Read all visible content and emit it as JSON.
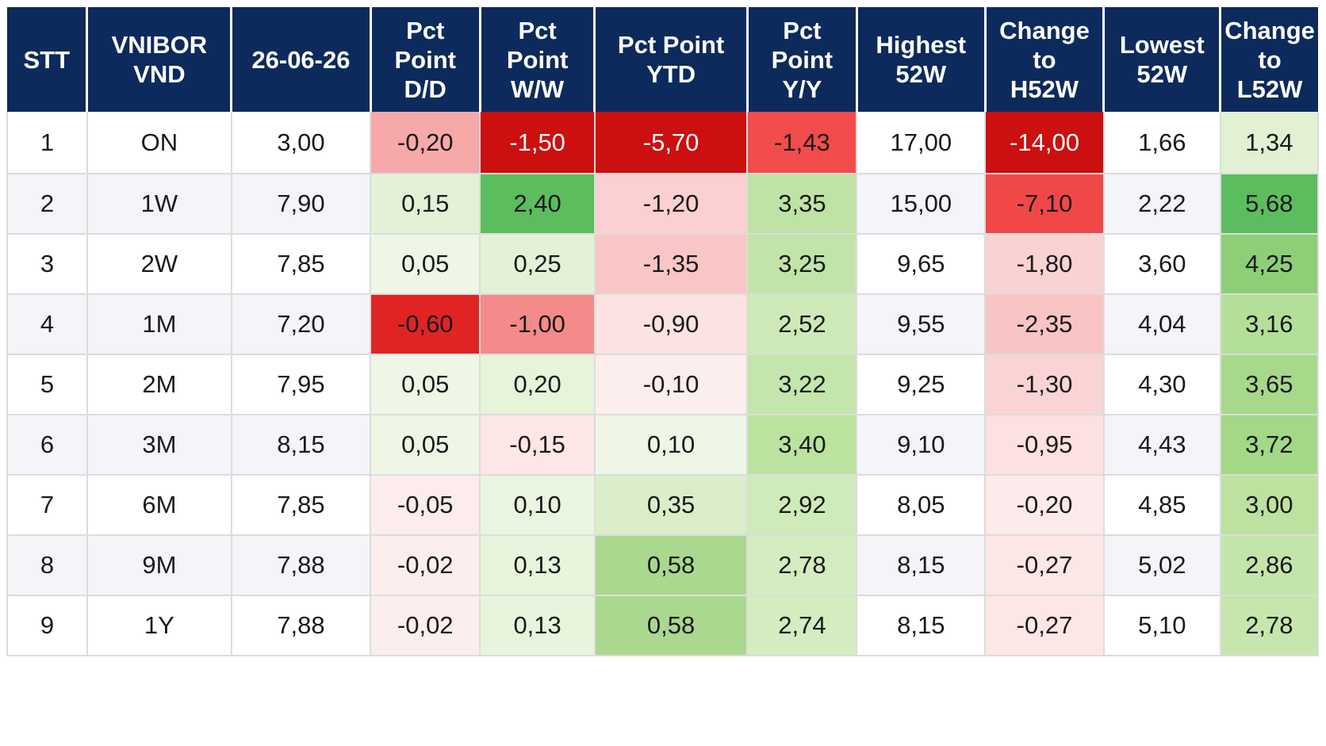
{
  "header": {
    "columns": [
      {
        "key": "stt",
        "lines": [
          "STT"
        ]
      },
      {
        "key": "vnibor",
        "lines": [
          "VNIBOR",
          "VND"
        ]
      },
      {
        "key": "rate",
        "lines": [
          "26-06-26"
        ]
      },
      {
        "key": "dd",
        "lines": [
          "Pct",
          "Point",
          "D/D"
        ]
      },
      {
        "key": "ww",
        "lines": [
          "Pct",
          "Point",
          "W/W"
        ]
      },
      {
        "key": "ytd",
        "lines": [
          "Pct Point",
          "YTD"
        ]
      },
      {
        "key": "yy",
        "lines": [
          "Pct",
          "Point",
          "Y/Y"
        ]
      },
      {
        "key": "h52",
        "lines": [
          "Highest",
          "52W"
        ]
      },
      {
        "key": "ch52",
        "lines": [
          "Change",
          "to",
          "H52W"
        ]
      },
      {
        "key": "l52",
        "lines": [
          "Lowest",
          "52W"
        ]
      },
      {
        "key": "cl52",
        "lines": [
          "Change",
          "to",
          "L52W"
        ]
      }
    ]
  },
  "rows": [
    {
      "stt": "1",
      "tenor": "ON",
      "rate": "3,00",
      "dd": "-0,20",
      "ww": "-1,50",
      "ytd": "-5,70",
      "yy": "-1,43",
      "h52": "17,00",
      "ch52": "-14,00",
      "l52": "1,66",
      "cl52": "1,34"
    },
    {
      "stt": "2",
      "tenor": "1W",
      "rate": "7,90",
      "dd": "0,15",
      "ww": "2,40",
      "ytd": "-1,20",
      "yy": "3,35",
      "h52": "15,00",
      "ch52": "-7,10",
      "l52": "2,22",
      "cl52": "5,68"
    },
    {
      "stt": "3",
      "tenor": "2W",
      "rate": "7,85",
      "dd": "0,05",
      "ww": "0,25",
      "ytd": "-1,35",
      "yy": "3,25",
      "h52": "9,65",
      "ch52": "-1,80",
      "l52": "3,60",
      "cl52": "4,25"
    },
    {
      "stt": "4",
      "tenor": "1M",
      "rate": "7,20",
      "dd": "-0,60",
      "ww": "-1,00",
      "ytd": "-0,90",
      "yy": "2,52",
      "h52": "9,55",
      "ch52": "-2,35",
      "l52": "4,04",
      "cl52": "3,16"
    },
    {
      "stt": "5",
      "tenor": "2M",
      "rate": "7,95",
      "dd": "0,05",
      "ww": "0,20",
      "ytd": "-0,10",
      "yy": "3,22",
      "h52": "9,25",
      "ch52": "-1,30",
      "l52": "4,30",
      "cl52": "3,65"
    },
    {
      "stt": "6",
      "tenor": "3M",
      "rate": "8,15",
      "dd": "0,05",
      "ww": "-0,15",
      "ytd": "0,10",
      "yy": "3,40",
      "h52": "9,10",
      "ch52": "-0,95",
      "l52": "4,43",
      "cl52": "3,72"
    },
    {
      "stt": "7",
      "tenor": "6M",
      "rate": "7,85",
      "dd": "-0,05",
      "ww": "0,10",
      "ytd": "0,35",
      "yy": "2,92",
      "h52": "8,05",
      "ch52": "-0,20",
      "l52": "4,85",
      "cl52": "3,00"
    },
    {
      "stt": "8",
      "tenor": "9M",
      "rate": "7,88",
      "dd": "-0,02",
      "ww": "0,13",
      "ytd": "0,58",
      "yy": "2,78",
      "h52": "8,15",
      "ch52": "-0,27",
      "l52": "5,02",
      "cl52": "2,86"
    },
    {
      "stt": "9",
      "tenor": "1Y",
      "rate": "7,88",
      "dd": "-0,02",
      "ww": "0,13",
      "ytd": "0,58",
      "yy": "2,74",
      "h52": "8,15",
      "ch52": "-0,27",
      "l52": "5,10",
      "cl52": "2,78"
    }
  ],
  "cell_colors": [
    {
      "dd": "#f7a9a9",
      "ww": "#cc0f0f",
      "ytd": "#cc0f0f",
      "yy": "#f24c4c",
      "ch52": "#cc0f0f",
      "cl52": "#e2f1d3"
    },
    {
      "dd": "#e3f2d6",
      "ww": "#5cbd5e",
      "ytd": "#fad0d0",
      "yy": "#bfe3a5",
      "ch52": "#f04848",
      "cl52": "#5cbd5e"
    },
    {
      "dd": "#eef7e6",
      "ww": "#e3f2d6",
      "ytd": "#f9c6c6",
      "yy": "#c2e4a9",
      "ch52": "#fad2d2",
      "cl52": "#8dcf77"
    },
    {
      "dd": "#e02424",
      "ww": "#f48a8a",
      "ytd": "#fde2e2",
      "yy": "#cde9b8",
      "ch52": "#f9c4c4",
      "cl52": "#b4df98"
    },
    {
      "dd": "#eef7e6",
      "ww": "#e6f4da",
      "ytd": "#fdeeee",
      "yy": "#c4e5ac",
      "ch52": "#fad4d4",
      "cl52": "#a6d98a"
    },
    {
      "dd": "#eef7e6",
      "ww": "#fde6e6",
      "ytd": "#eef7e6",
      "yy": "#bce2a0",
      "ch52": "#fde0e0",
      "cl52": "#a3d886"
    },
    {
      "dd": "#fdecec",
      "ww": "#eaf5df",
      "ytd": "#d9eec9",
      "yy": "#cfeabb",
      "ch52": "#fdeaea",
      "cl52": "#bde29f"
    },
    {
      "dd": "#fdeeee",
      "ww": "#e8f5dc",
      "ytd": "#aad88e",
      "yy": "#d3ecc0",
      "ch52": "#fde6e6",
      "cl52": "#c4e5aa"
    },
    {
      "dd": "#fdeeee",
      "ww": "#e8f5dc",
      "ytd": "#aad88e",
      "yy": "#d3ecc0",
      "ch52": "#fde6e6",
      "cl52": "#c7e6ad"
    }
  ]
}
